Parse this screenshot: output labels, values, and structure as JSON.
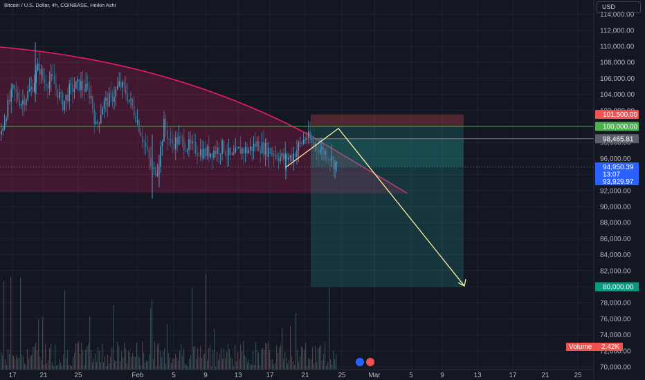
{
  "header": {
    "title": "Bitcoin / U.S. Dollar, 4h, COINBASE, Heikin Ashi"
  },
  "price_scale": {
    "currency_button": "USD",
    "ticks": [
      "114,000.00",
      "112,000.00",
      "110,000.00",
      "108,000.00",
      "106,000.00",
      "104,000.00",
      "102,000.00",
      "100,000.00",
      "98,000.00",
      "96,000.00",
      "94,000.00",
      "92,000.00",
      "90,000.00",
      "88,000.00",
      "86,000.00",
      "84,000.00",
      "82,000.00",
      "80,000.00",
      "78,000.00",
      "76,000.00",
      "74,000.00",
      "72,000.00",
      "70,000.00"
    ],
    "tags": {
      "stop": "101,500.00",
      "entry": "100,000.00",
      "gray": "98,465.81",
      "last_price": "94,950.39",
      "countdown": "13:07",
      "prev_close": "93,929.97",
      "target": "80,000.00"
    },
    "volume_label": "Volume",
    "volume_value": "2.42K"
  },
  "time_scale": {
    "ticks": [
      "17",
      "21",
      "25",
      "Feb",
      "5",
      "9",
      "13",
      "17",
      "21",
      "25",
      "Mar",
      "5",
      "9",
      "13",
      "17",
      "21",
      "25"
    ]
  },
  "colors": {
    "background": "#131722",
    "up": "#26a69a",
    "up_candle": "#4f9ec4",
    "down": "#ef5350",
    "arc": "#e91e63",
    "entry_line": "#4caf50",
    "projection": "#fff59d",
    "last_price": "#2962ff"
  },
  "chart_data": {
    "type": "candlestick",
    "symbol": "Bitcoin / U.S. Dollar",
    "interval": "4h",
    "exchange": "COINBASE",
    "style": "Heikin Ashi",
    "ylim": [
      70000,
      115000
    ],
    "x_ticks": [
      "17",
      "21",
      "25",
      "Feb",
      "5",
      "9",
      "13",
      "17",
      "21",
      "25",
      "Mar",
      "5",
      "9",
      "13",
      "17",
      "21",
      "25"
    ],
    "price_series_approx": [
      {
        "x": "17",
        "y": 102000
      },
      {
        "x": "21",
        "y": 106000
      },
      {
        "x": "25",
        "y": 104000
      },
      {
        "x": "Feb",
        "y": 97000
      },
      {
        "x": "5",
        "y": 99000
      },
      {
        "x": "9",
        "y": 97000
      },
      {
        "x": "13",
        "y": 96800
      },
      {
        "x": "17",
        "y": 97000
      },
      {
        "x": "21",
        "y": 99000
      },
      {
        "x": "25",
        "y": 94950
      }
    ],
    "position": {
      "side": "short",
      "entry": 100000,
      "stop": 101500,
      "target": 80000
    },
    "levels": {
      "last_price": 94950.39,
      "previous_close": 93929.97,
      "marked": 98465.81
    },
    "volume_last": "2.42K"
  }
}
